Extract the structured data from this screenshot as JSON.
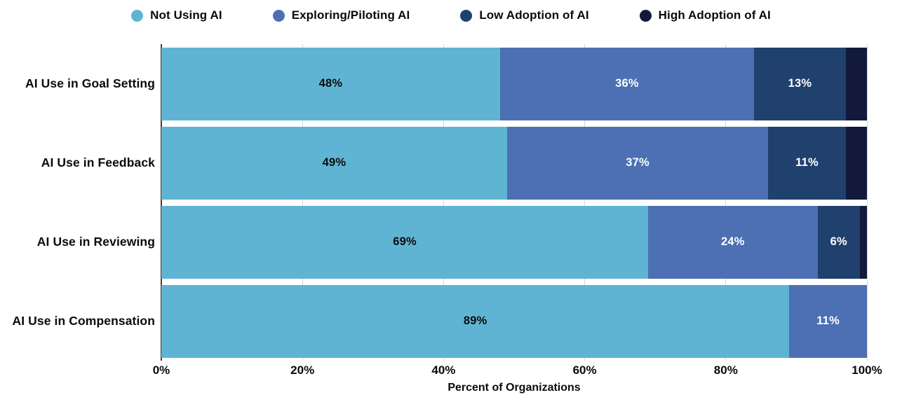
{
  "chart_data": {
    "type": "bar",
    "stacked": true,
    "orientation": "horizontal",
    "title": "",
    "categories": [
      "AI Use in Goal Setting",
      "AI Use in Feedback",
      "AI Use in Reviewing",
      "AI Use in Compensation"
    ],
    "series": [
      {
        "name": "Not Using AI",
        "color": "#60B4D3",
        "label_text_color": "#0d0d0d",
        "values": [
          48,
          49,
          69,
          89
        ]
      },
      {
        "name": "Exploring/Piloting AI",
        "color": "#4C70B3",
        "label_text_color": "#ffffff",
        "values": [
          36,
          37,
          24,
          11
        ]
      },
      {
        "name": "Low Adoption of AI",
        "color": "#20406E",
        "label_text_color": "#ffffff",
        "values": [
          13,
          11,
          6,
          0
        ]
      },
      {
        "name": "High Adoption of AI",
        "color": "#12193B",
        "label_text_color": "#ffffff",
        "values": [
          3,
          3,
          1,
          0
        ]
      }
    ],
    "xlabel": "Percent of Organizations",
    "x_ticks": [
      "0%",
      "20%",
      "40%",
      "60%",
      "80%",
      "100%"
    ],
    "xlim": [
      0,
      100
    ],
    "grid": "vertical-only",
    "legend_position": "top-center",
    "value_suffix": "%",
    "min_value_for_label": 6
  },
  "colors": {
    "background": "#ffffff",
    "gridline": "#d5d5d5",
    "axis_line": "#3f3f3f",
    "text": "#0a0a0a"
  }
}
